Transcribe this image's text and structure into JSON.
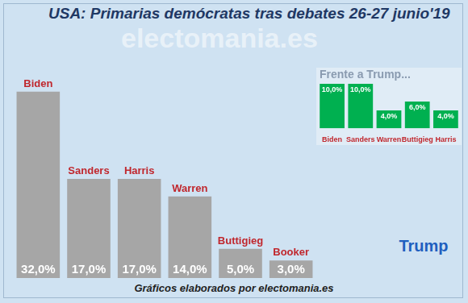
{
  "page": {
    "watermark": "electomania.es",
    "footer": "Gráficos elaborados por electomania.es"
  },
  "chart_data": [
    {
      "type": "bar",
      "title": "USA: Primarias demócratas tras debates 26-27 junio'19",
      "categories": [
        "Biden",
        "Sanders",
        "Harris",
        "Warren",
        "Buttigieg",
        "Booker"
      ],
      "values": [
        32,
        17,
        17,
        14,
        5,
        3
      ],
      "value_labels": [
        "32,0%",
        "17,0%",
        "17,0%",
        "14,0%",
        "5,0%",
        "3,0%"
      ],
      "color": "#a6a6a6",
      "data_labels": true,
      "tick_labels": false,
      "grid": false
    },
    {
      "type": "bar",
      "title": "Frente a Trump...",
      "annotations": [
        "Trump"
      ],
      "categories": [
        "Biden",
        "Sanders",
        "Warren",
        "Buttigieg",
        "Harris"
      ],
      "values": [
        10,
        10,
        4,
        6,
        4
      ],
      "value_labels": [
        "10,0%",
        "10,0%",
        "4,0%",
        "6,0%",
        "4,0%"
      ],
      "color": "#00b050",
      "data_labels": true,
      "tick_labels": "x",
      "grid": false
    }
  ]
}
